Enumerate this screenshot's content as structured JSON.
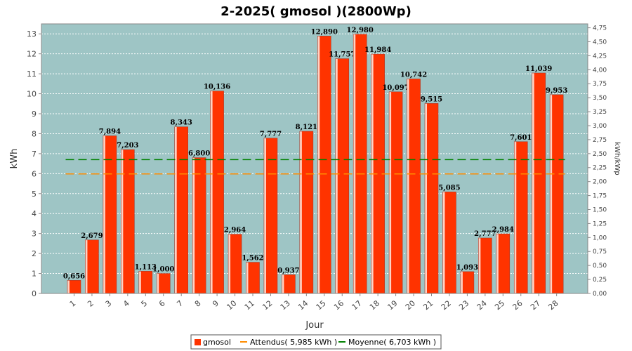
{
  "chart_data": {
    "type": "bar",
    "title": "2-2025( gmosol )(2800Wp)",
    "xlabel": "Jour",
    "ylabel": "kWh",
    "y2label": "kWh/kWp",
    "ylim": [
      0,
      13.5
    ],
    "y2lim": [
      0,
      4.82
    ],
    "yticks": [
      0,
      1,
      2,
      3,
      4,
      5,
      6,
      7,
      8,
      9,
      10,
      11,
      12,
      13
    ],
    "y2ticks": [
      "0,00",
      "0,25",
      "0,50",
      "0,75",
      "1,00",
      "1,25",
      "1,50",
      "1,75",
      "2,00",
      "2,25",
      "2,50",
      "2,75",
      "3,00",
      "3,25",
      "3,50",
      "3,75",
      "4,00",
      "4,25",
      "4,50",
      "4,75"
    ],
    "categories": [
      "1",
      "2",
      "3",
      "4",
      "5",
      "6",
      "7",
      "8",
      "9",
      "10",
      "11",
      "12",
      "13",
      "14",
      "15",
      "16",
      "17",
      "18",
      "19",
      "20",
      "21",
      "22",
      "23",
      "24",
      "25",
      "26",
      "27",
      "28"
    ],
    "series": [
      {
        "name": "gmosol",
        "values": [
          0.656,
          2.679,
          7.894,
          7.203,
          1.113,
          1.0,
          8.343,
          6.8,
          10.136,
          2.964,
          1.562,
          7.777,
          0.937,
          8.121,
          12.89,
          11.757,
          12.98,
          11.984,
          10.097,
          10.742,
          9.515,
          5.085,
          1.093,
          2.777,
          2.984,
          7.601,
          11.039,
          9.953
        ],
        "labels": [
          "0,656",
          "2,679",
          "7,894",
          "7,203",
          "1,113",
          "1,000",
          "8,343",
          "6,800",
          "10,136",
          "2,964",
          "1,562",
          "7,777",
          "0,937",
          "8,121",
          "12,890",
          "11,757",
          "12,980",
          "11,984",
          "10,097",
          "10,742",
          "9,515",
          "5,085",
          "1,093",
          "2,777",
          "2,984",
          "7,601",
          "11,039",
          "9,953"
        ]
      }
    ],
    "reference_lines": [
      {
        "name": "Attendus( 5,985 kWh )",
        "value": 5.985,
        "color": "#ff8c00"
      },
      {
        "name": "Moyenne( 6,703 kWh )",
        "value": 6.703,
        "color": "#008000"
      }
    ],
    "legend": {
      "position": "bottom",
      "items": [
        "gmosol",
        "Attendus( 5,985 kWh )",
        "Moyenne( 6,703 kWh )"
      ]
    },
    "colors": {
      "bar": "#ff3300",
      "plot_background": "#9ec5c5",
      "grid": "#ffffff"
    },
    "grid": true
  }
}
